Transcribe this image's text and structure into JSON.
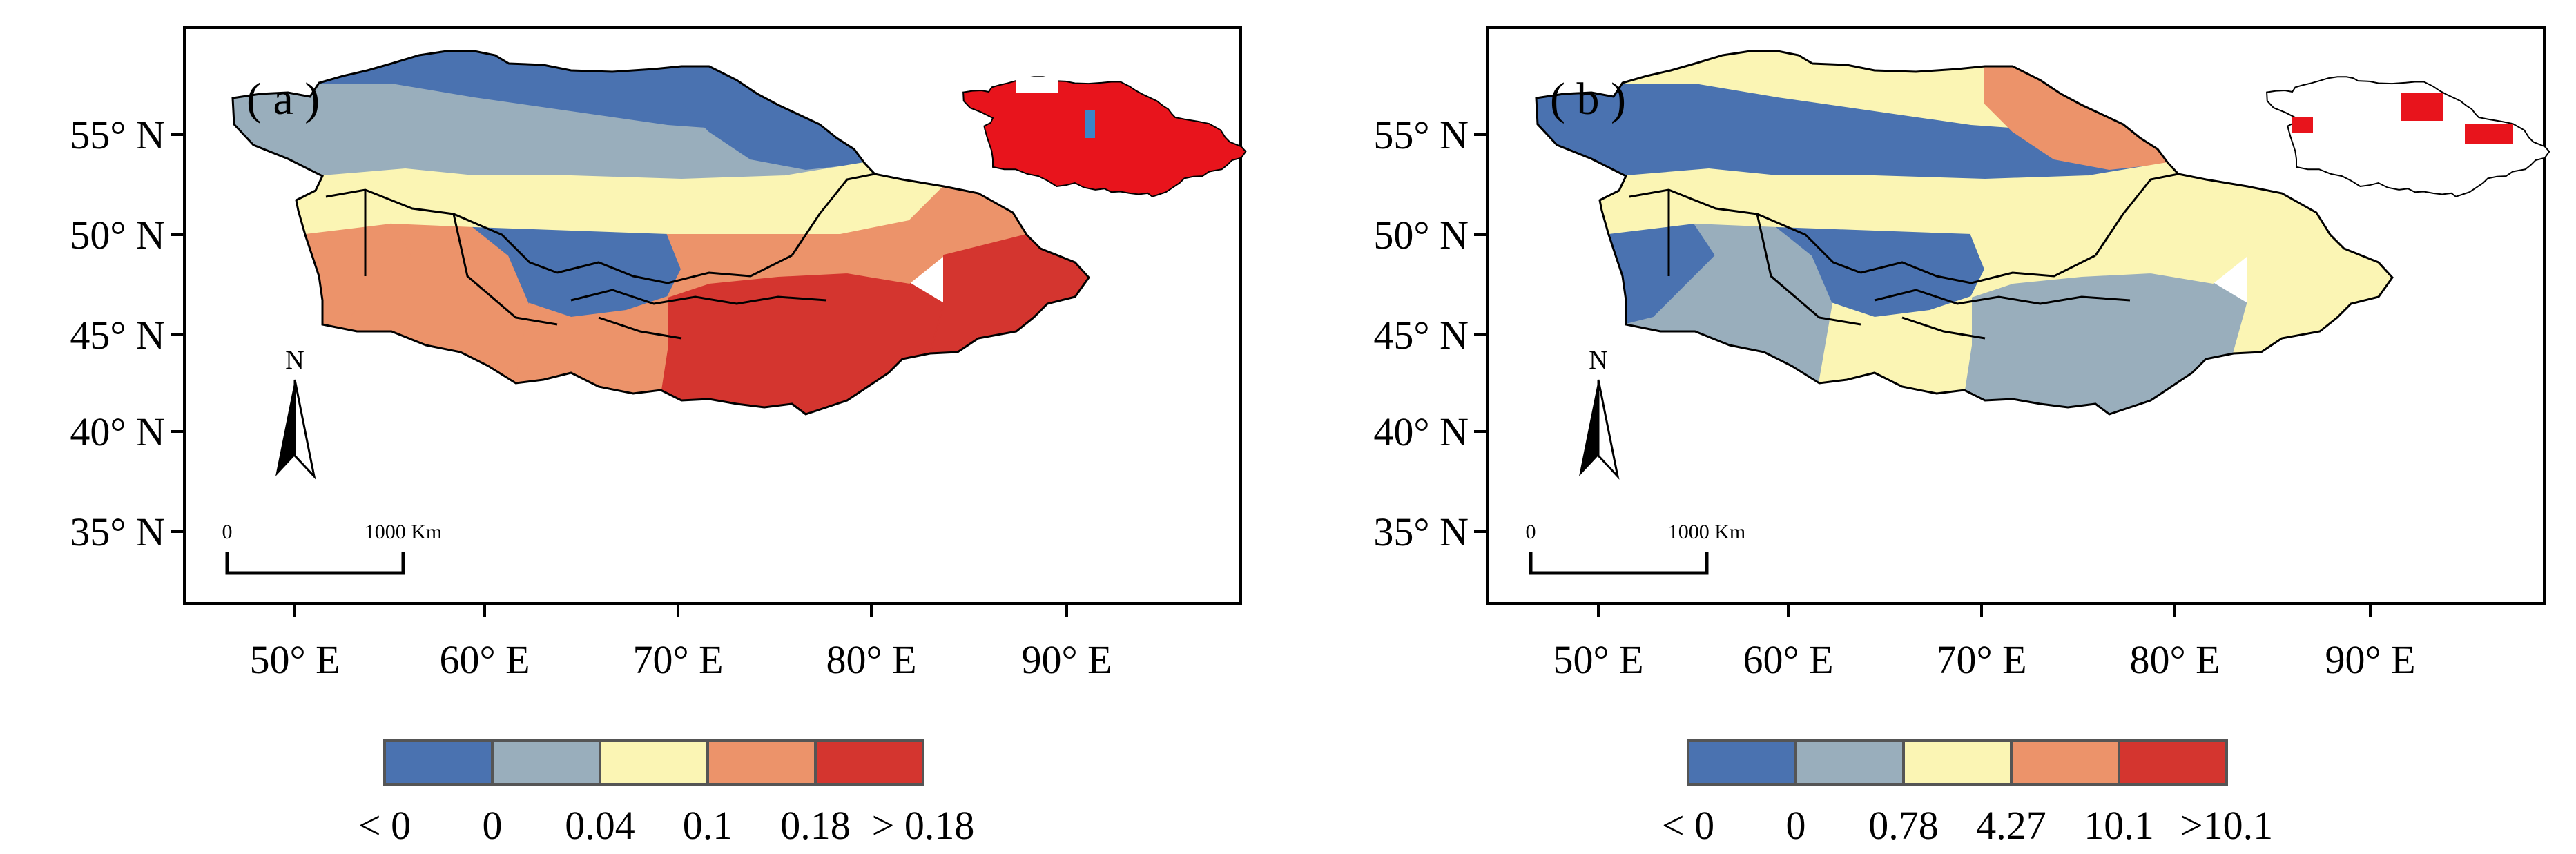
{
  "colors": {
    "class_1": "#4a72b0",
    "class_2": "#99aebc",
    "class_3": "#fbf5b4",
    "class_4": "#ec936a",
    "class_5": "#d4352f",
    "inset_fill": "#e8141c",
    "inset_blue": "#3a86c8",
    "frame": "#000000"
  },
  "axes": {
    "lat_labels": [
      "55° N",
      "50° N",
      "45° N",
      "40° N",
      "35° N"
    ],
    "lon_labels": [
      "50° E",
      "60° E",
      "70° E",
      "80° E",
      "90° E"
    ]
  },
  "north_arrow_label": "N",
  "scale_bar": {
    "start_label": "0",
    "end_label": "1000 Km"
  },
  "panels": [
    {
      "label": "( a )",
      "legend_labels": [
        "< 0",
        "0",
        "0.04",
        "0.1",
        "0.18",
        "> 0.18"
      ],
      "region_classes": {
        "northwest": 2,
        "north_steppe": 1,
        "north_east": 1,
        "central_band": 3,
        "west_caspian": 4,
        "turkmen": 4,
        "tarim": 5,
        "dzungaria": 4,
        "east_tip": 5,
        "mountains": 1,
        "south_edge": 4
      }
    },
    {
      "label": "( b )",
      "legend_labels": [
        "< 0",
        "0",
        "0.78",
        "4.27",
        "10.1",
        ">10.1"
      ],
      "region_classes": {
        "northwest": 1,
        "north_steppe": 3,
        "north_east": 4,
        "central_band": 3,
        "west_caspian": 1,
        "turkmen": 2,
        "tarim": 2,
        "dzungaria": 3,
        "east_tip": 3,
        "mountains": 1,
        "south_edge": 3
      }
    }
  ]
}
